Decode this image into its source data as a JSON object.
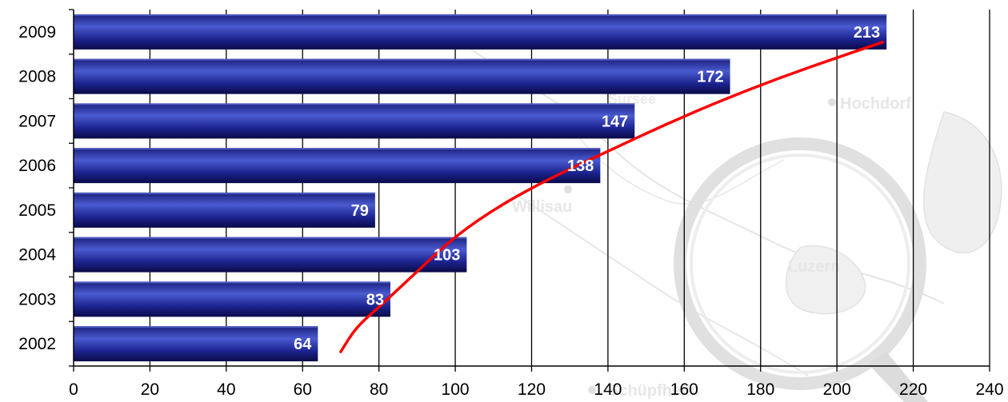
{
  "chart_data": {
    "type": "bar",
    "orientation": "horizontal",
    "categories": [
      "2009",
      "2008",
      "2007",
      "2006",
      "2005",
      "2004",
      "2003",
      "2002"
    ],
    "values": [
      213,
      172,
      147,
      138,
      79,
      103,
      83,
      64
    ],
    "data_labels": [
      "213",
      "172",
      "147",
      "138",
      "79",
      "103",
      "83",
      "64"
    ],
    "title": "",
    "xlabel": "",
    "ylabel": "",
    "xlim": [
      0,
      240
    ],
    "x_ticks": [
      0,
      20,
      40,
      60,
      80,
      100,
      120,
      140,
      160,
      180,
      200,
      220,
      240
    ],
    "x_tick_labels": [
      "0",
      "20",
      "40",
      "60",
      "80",
      "100",
      "120",
      "140",
      "160",
      "180",
      "200",
      "220",
      "240"
    ],
    "grid": "vertical",
    "legend": "none",
    "trend_line": {
      "color": "#ff0000",
      "x": [
        70,
        74,
        80,
        90,
        100,
        112,
        125,
        140,
        155,
        170,
        185,
        200,
        212
      ],
      "category_position": [
        0.0,
        0.55,
        1.0,
        1.8,
        2.6,
        3.3,
        3.9,
        4.5,
        5.1,
        5.65,
        6.15,
        6.6,
        6.95
      ]
    },
    "colors": {
      "bar_dark": "#0d0d55",
      "bar_mid": "#2a36a8",
      "bar_light": "#4a5ad0",
      "trend": "#ff0000",
      "grid": "#000000",
      "background_map": "#d8d8d8"
    }
  },
  "background": {
    "map_labels": [
      "Hochdorf",
      "Willisau",
      "Luzern",
      "Sursee",
      "Schüpfheim"
    ]
  }
}
